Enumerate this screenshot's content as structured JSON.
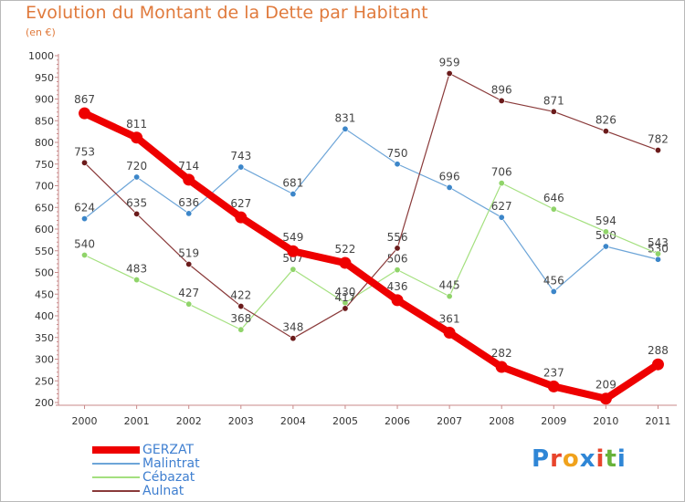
{
  "header": {
    "title": "Evolution du Montant de la Dette par Habitant",
    "unit": "(en €)"
  },
  "logo": {
    "text": "Proxiti",
    "colors": [
      "#2f86d6",
      "#e8452c",
      "#f0a21c",
      "#2f86d6",
      "#e8452c",
      "#68b33a",
      "#2f86d6"
    ]
  },
  "chart_data": {
    "type": "line",
    "title": "Evolution du Montant de la Dette par Habitant",
    "subtitle": "(en €)",
    "xlabel": "",
    "ylabel": "",
    "x": [
      "2000",
      "2001",
      "2002",
      "2003",
      "2004",
      "2005",
      "2006",
      "2007",
      "2008",
      "2009",
      "2010",
      "2011"
    ],
    "ylim": [
      200,
      1000
    ],
    "yticks": [
      200,
      250,
      300,
      350,
      400,
      450,
      500,
      550,
      600,
      650,
      700,
      750,
      800,
      850,
      900,
      950,
      1000
    ],
    "grid": false,
    "legend_position": "bottom-left",
    "series": [
      {
        "name": "GERZAT",
        "color": "#ee0000",
        "marker_color": "#ee0000",
        "width": 8,
        "marker_r": 6.5,
        "values": [
          867,
          811,
          714,
          627,
          549,
          522,
          436,
          361,
          282,
          237,
          209,
          288
        ]
      },
      {
        "name": "Malintrat",
        "color": "#6da5d8",
        "marker_color": "#3c86c9",
        "width": 1.2,
        "marker_r": 3.2,
        "values": [
          624,
          720,
          636,
          743,
          681,
          831,
          750,
          696,
          627,
          456,
          560,
          530
        ]
      },
      {
        "name": "Cébazat",
        "color": "#a4e07f",
        "marker_color": "#90d46a",
        "width": 1.2,
        "marker_r": 3.2,
        "values": [
          540,
          483,
          427,
          368,
          507,
          430,
          506,
          445,
          706,
          646,
          594,
          543
        ]
      },
      {
        "name": "Aulnat",
        "color": "#8a3a3a",
        "marker_color": "#6b1b1b",
        "width": 1.2,
        "marker_r": 3.2,
        "values": [
          753,
          635,
          519,
          422,
          348,
          417,
          556,
          959,
          896,
          871,
          826,
          782
        ]
      }
    ]
  }
}
